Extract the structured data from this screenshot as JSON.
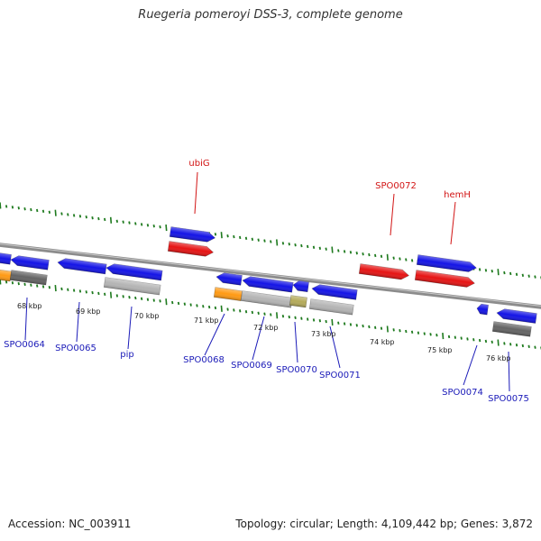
{
  "title": "Ruegeria pomeroyi DSS-3, complete genome",
  "footer": {
    "accession": "Accession: NC_003911",
    "summary": "Topology: circular; Length: 4,109,442 bp; Genes: 3,872"
  },
  "colors": {
    "blue_gene": "#1414e6",
    "red_gene": "#e61414",
    "orange_feature": "#ff9a14",
    "gray_feature": "#b4b4b4",
    "dark_feature": "#646464",
    "olive_feature": "#b4aa5a",
    "backbone": "#8c8c8c",
    "tick": "#1e7a1e",
    "blue_label": "#1a1ab8",
    "red_label": "#d21414"
  },
  "tick_labels": [
    "68 kbp",
    "69 kbp",
    "70 kbp",
    "71 kbp",
    "72 kbp",
    "73 kbp",
    "74 kbp",
    "75 kbp",
    "76 kbp"
  ],
  "labels_top": [
    "ubiG",
    "SPO0072",
    "hemH"
  ],
  "labels_bottom": [
    "SPO0064",
    "SPO0065",
    "pip",
    "SPO0068",
    "SPO0069",
    "SPO0070",
    "SPO0071",
    "SPO0074",
    "SPO0075"
  ]
}
